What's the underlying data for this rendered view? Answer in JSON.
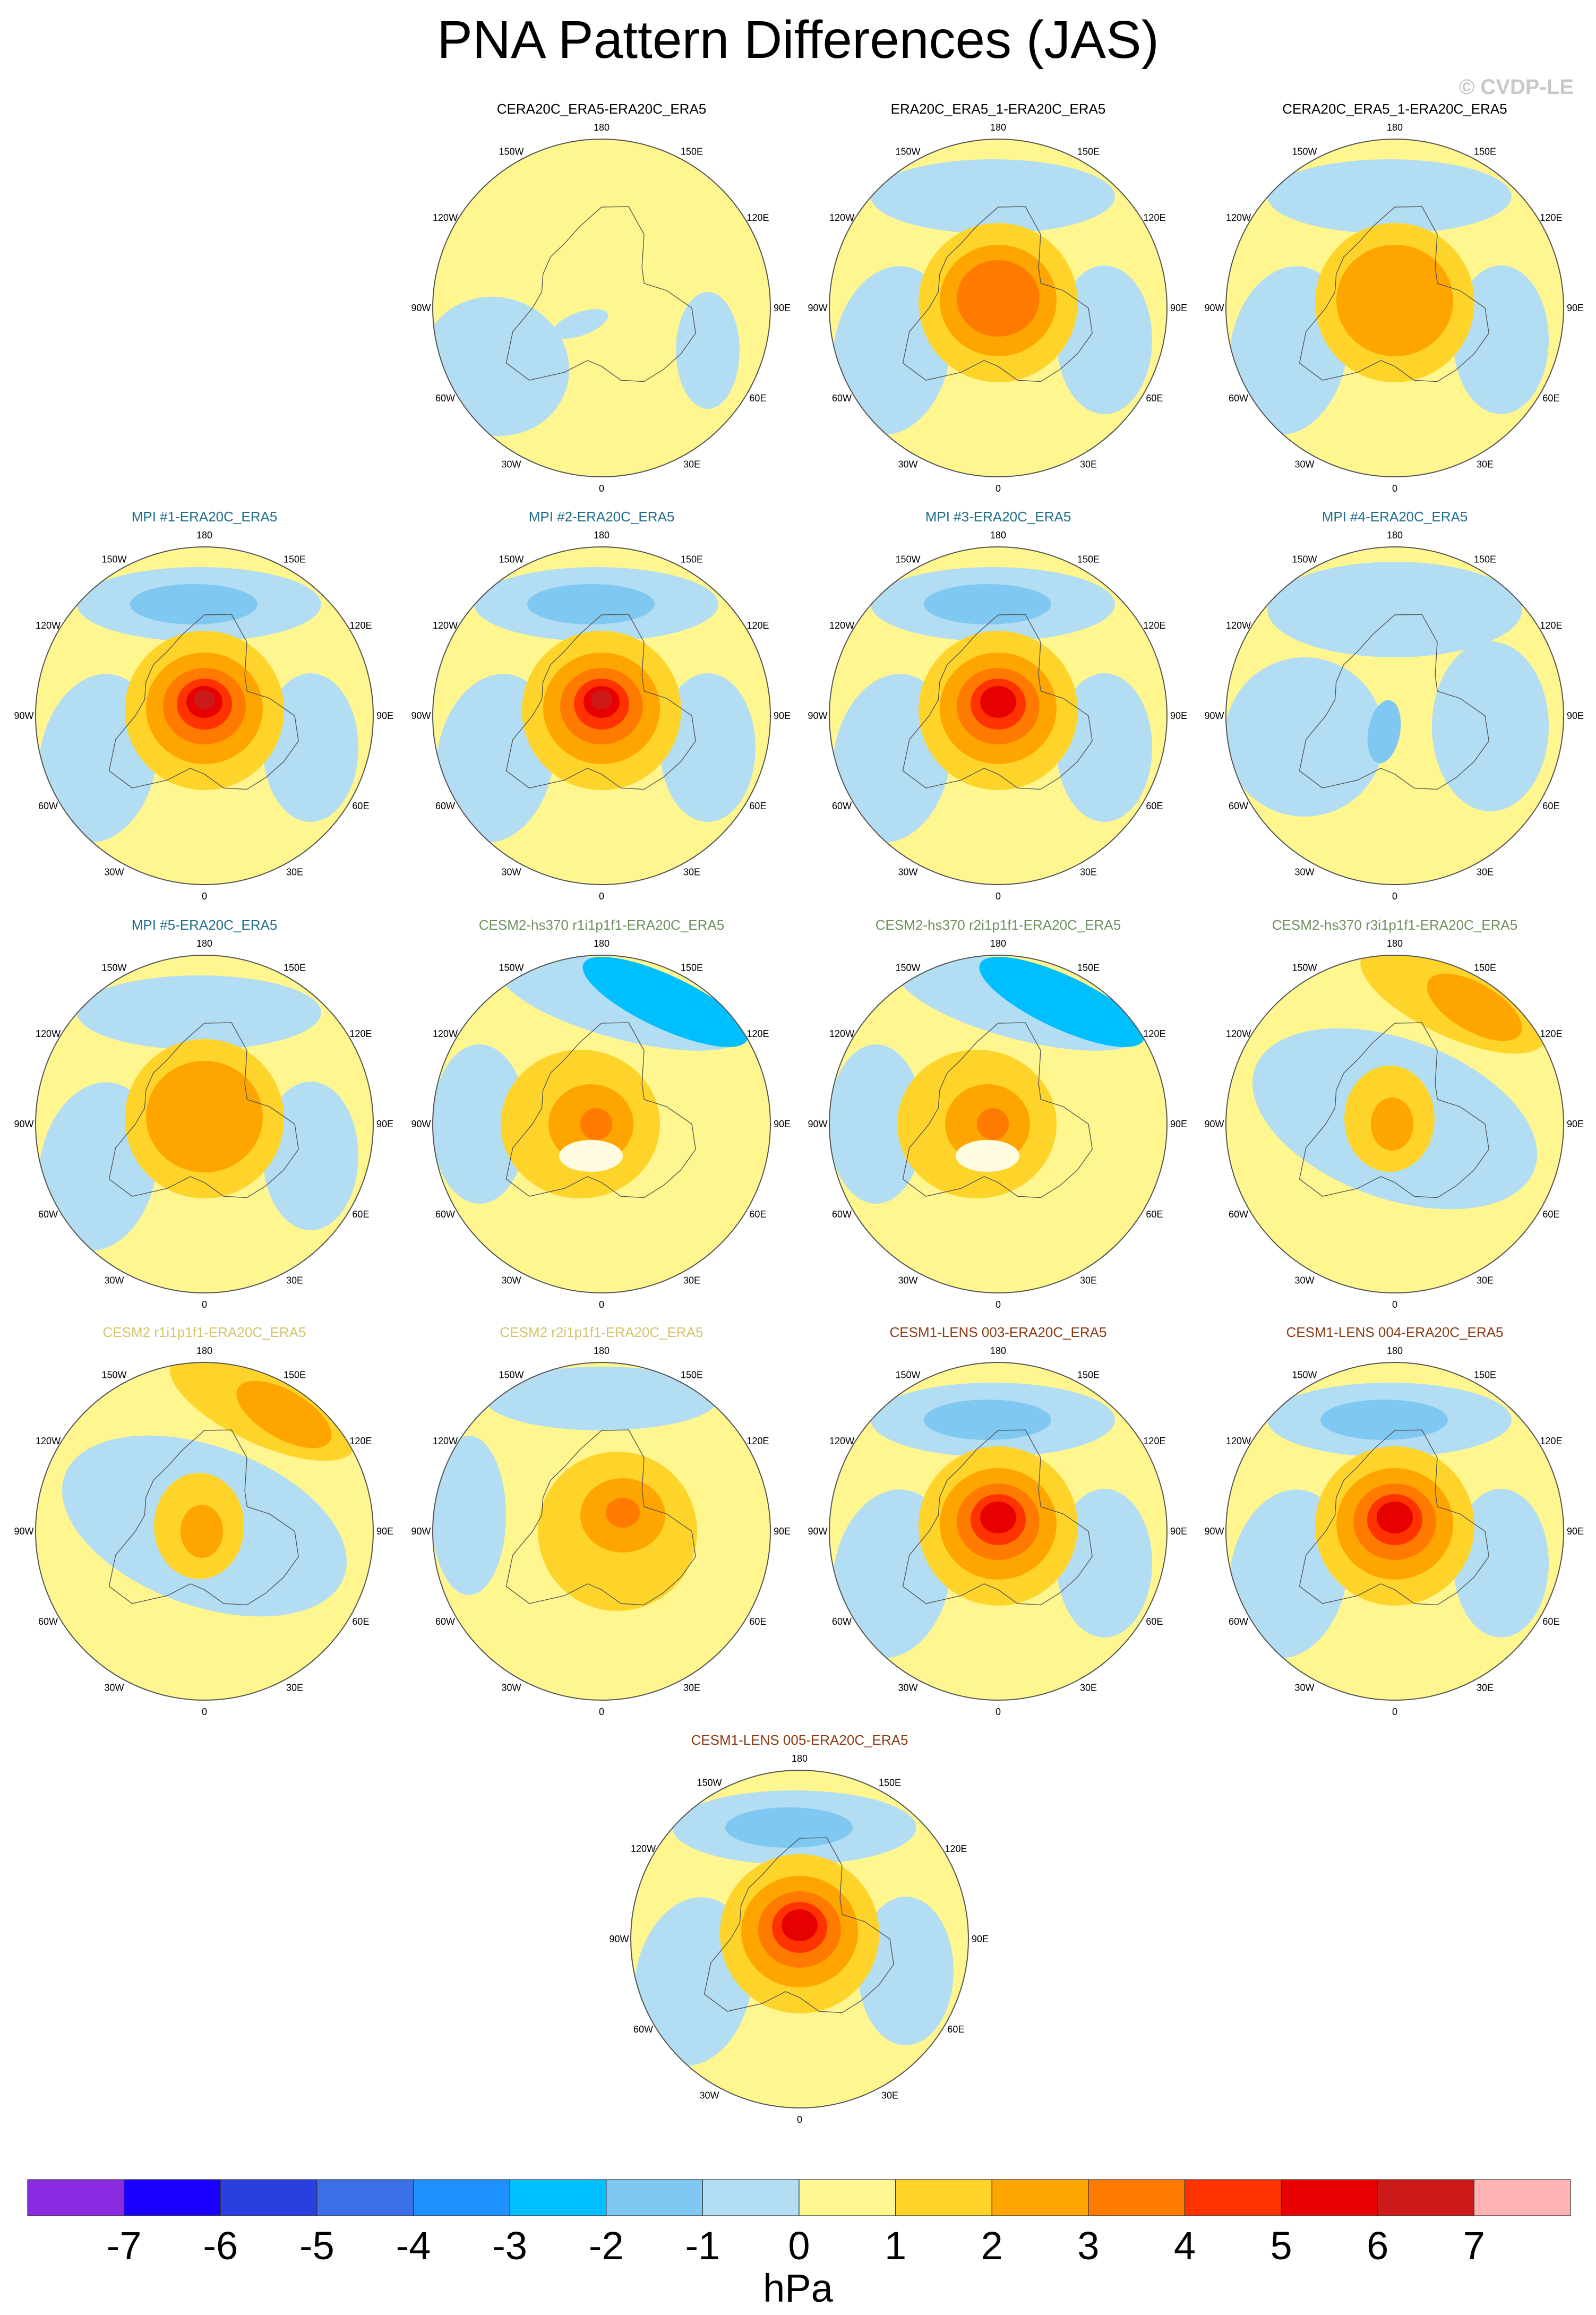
{
  "title": "PNA Pattern Differences (JAS)",
  "watermark": "© CVDP-LE",
  "colors": {
    "title_black": "#000000",
    "mpi": "#1f6e8c",
    "cesm2_hs370": "#6f8f5f",
    "cesm2": "#d6c36a",
    "cesm1": "#8b3a12"
  },
  "grid_labels": [
    "180",
    "150E",
    "120E",
    "90E",
    "60E",
    "30E",
    "0",
    "30W",
    "60W",
    "90W",
    "120W",
    "150W"
  ],
  "panels": [
    {
      "title": "CERA20C_ERA5-ERA20C_ERA5",
      "color": "title_black",
      "row": 0,
      "col": 1,
      "pattern": "neutral"
    },
    {
      "title": "ERA20C_ERA5_1-ERA20C_ERA5",
      "color": "title_black",
      "row": 0,
      "col": 2,
      "pattern": "pole3"
    },
    {
      "title": "CERA20C_ERA5_1-ERA20C_ERA5",
      "color": "title_black",
      "row": 0,
      "col": 3,
      "pattern": "pole2"
    },
    {
      "title": "MPI #1-ERA20C_ERA5",
      "color": "mpi",
      "row": 1,
      "col": 0,
      "pattern": "pole6"
    },
    {
      "title": "MPI #2-ERA20C_ERA5",
      "color": "mpi",
      "row": 1,
      "col": 1,
      "pattern": "pole6"
    },
    {
      "title": "MPI #3-ERA20C_ERA5",
      "color": "mpi",
      "row": 1,
      "col": 2,
      "pattern": "pole5"
    },
    {
      "title": "MPI #4-ERA20C_ERA5",
      "color": "mpi",
      "row": 1,
      "col": 3,
      "pattern": "blue"
    },
    {
      "title": "MPI #5-ERA20C_ERA5",
      "color": "mpi",
      "row": 2,
      "col": 0,
      "pattern": "pole2"
    },
    {
      "title": "CESM2-hs370 r1i1p1f1-ERA20C_ERA5",
      "color": "cesm2_hs370",
      "row": 2,
      "col": 1,
      "pattern": "pole4b"
    },
    {
      "title": "CESM2-hs370 r2i1p1f1-ERA20C_ERA5",
      "color": "cesm2_hs370",
      "row": 2,
      "col": 2,
      "pattern": "pole4b"
    },
    {
      "title": "CESM2-hs370 r3i1p1f1-ERA20C_ERA5",
      "color": "cesm2_hs370",
      "row": 2,
      "col": 3,
      "pattern": "pole2r"
    },
    {
      "title": "CESM2 r1i1p1f1-ERA20C_ERA5",
      "color": "cesm2",
      "row": 3,
      "col": 0,
      "pattern": "pole2r"
    },
    {
      "title": "CESM2 r2i1p1f1-ERA20C_ERA5",
      "color": "cesm2",
      "row": 3,
      "col": 1,
      "pattern": "pole4"
    },
    {
      "title": "CESM1-LENS 003-ERA20C_ERA5",
      "color": "cesm1",
      "row": 3,
      "col": 2,
      "pattern": "pole5"
    },
    {
      "title": "CESM1-LENS 004-ERA20C_ERA5",
      "color": "cesm1",
      "row": 3,
      "col": 3,
      "pattern": "pole5"
    },
    {
      "title": "CESM1-LENS 005-ERA20C_ERA5",
      "color": "cesm1",
      "row": 4,
      "col": 1.5,
      "pattern": "pole5"
    }
  ],
  "colorbar": {
    "colors": [
      "#8a2be2",
      "#1a00ff",
      "#2b3ee0",
      "#3a6fe8",
      "#1e90ff",
      "#00bfff",
      "#7ec8f2",
      "#b3ddf2",
      "#fff68f",
      "#ffd42a",
      "#ffa500",
      "#ff7b00",
      "#ff3300",
      "#e60000",
      "#cc1a1a",
      "#ffb3b3"
    ],
    "ticks": [
      "-7",
      "-6",
      "-5",
      "-4",
      "-3",
      "-2",
      "-1",
      "0",
      "1",
      "2",
      "3",
      "4",
      "5",
      "6",
      "7"
    ],
    "units": "hPa"
  }
}
